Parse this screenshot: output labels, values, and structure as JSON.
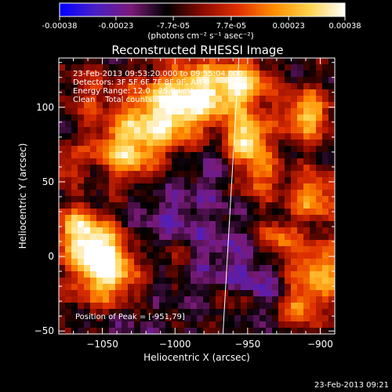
{
  "colorbar": {
    "tick_labels": [
      "-0.00038",
      "-0.00023",
      "-7.7e-05",
      "7.7e-05",
      "0.00023",
      "0.00038"
    ],
    "tick_values": [
      -0.00038,
      -0.00023,
      -7.7e-05,
      7.7e-05,
      0.00023,
      0.00038
    ],
    "range": [
      -0.00038,
      0.00038
    ],
    "units": "(photons cm⁻² s⁻¹ asec⁻²)",
    "colors": [
      "#0000ff",
      "#4a1fc8",
      "#7a1a78",
      "#000000",
      "#8a0a00",
      "#e03000",
      "#ff8c00",
      "#ffd24a",
      "#ffffff"
    ]
  },
  "chart_data": {
    "type": "heatmap",
    "title": "Reconstructed RHESSI Image",
    "xlabel": "Heliocentric X (arcsec)",
    "ylabel": "Heliocentric Y (arcsec)",
    "xlim": [
      -1080,
      -890
    ],
    "ylim": [
      -52,
      133
    ],
    "x_ticks": [
      -1050,
      -1000,
      -950,
      -900
    ],
    "y_ticks": [
      -50,
      0,
      50,
      100
    ],
    "x_tick_labels": [
      "−1050",
      "−1000",
      "−950",
      "−900"
    ],
    "y_tick_labels": [
      "−50",
      "0",
      "50",
      "100"
    ],
    "peak": [
      -951,
      79
    ],
    "limb_line": [
      [
        -967,
        -52
      ],
      [
        -956,
        133
      ]
    ],
    "annotations": [
      "23-Feb-2013 09:53:20.000 to 09:55:04.000",
      "Detectors: 3F 5F 6F 7F 8F 9F, Att 0",
      "Energy Range: 12.0 - 25.0 keV",
      "Clean    Total counts: 1.74E+04",
      "Position of Peak = [-951,79]"
    ],
    "hot_spots": [
      {
        "x": -1053,
        "y": 3,
        "sigma": 14,
        "value": 0.00036
      },
      {
        "x": -1045,
        "y": -15,
        "sigma": 16,
        "value": 0.0003
      },
      {
        "x": -1068,
        "y": 20,
        "sigma": 12,
        "value": 0.00026
      },
      {
        "x": -1035,
        "y": 70,
        "sigma": 16,
        "value": 0.00032
      },
      {
        "x": -1010,
        "y": 95,
        "sigma": 18,
        "value": 0.00034
      },
      {
        "x": -985,
        "y": 108,
        "sigma": 15,
        "value": 0.00034
      },
      {
        "x": -955,
        "y": 115,
        "sigma": 14,
        "value": 0.00036
      },
      {
        "x": -951,
        "y": 79,
        "sigma": 10,
        "value": 0.0004
      },
      {
        "x": -945,
        "y": 55,
        "sigma": 12,
        "value": 0.00025
      },
      {
        "x": -910,
        "y": 95,
        "sigma": 12,
        "value": 0.00033
      },
      {
        "x": -905,
        "y": 40,
        "sigma": 12,
        "value": 0.00027
      },
      {
        "x": -930,
        "y": 10,
        "sigma": 10,
        "value": 0.00024
      },
      {
        "x": -900,
        "y": -10,
        "sigma": 14,
        "value": 0.00031
      },
      {
        "x": -915,
        "y": -35,
        "sigma": 10,
        "value": 0.00022
      },
      {
        "x": -960,
        "y": -30,
        "sigma": 10,
        "value": 0.00015
      },
      {
        "x": -1000,
        "y": 0,
        "sigma": 9,
        "value": 0.00016
      },
      {
        "x": -1060,
        "y": 110,
        "sigma": 12,
        "value": 0.00012
      },
      {
        "x": -1075,
        "y": 60,
        "sigma": 10,
        "value": 0.00017
      }
    ],
    "cold_spots": [
      {
        "x": -1000,
        "y": 20,
        "sigma": 28,
        "value": -0.00018
      },
      {
        "x": -950,
        "y": -15,
        "sigma": 18,
        "value": -0.00026
      },
      {
        "x": -965,
        "y": 60,
        "sigma": 14,
        "value": -0.00015
      },
      {
        "x": -1060,
        "y": 50,
        "sigma": 12,
        "value": -0.00012
      },
      {
        "x": -1035,
        "y": -40,
        "sigma": 14,
        "value": -0.00014
      }
    ],
    "background_value": -9e-05
  },
  "footer_timestamp": "23-Feb-2013 09:21"
}
